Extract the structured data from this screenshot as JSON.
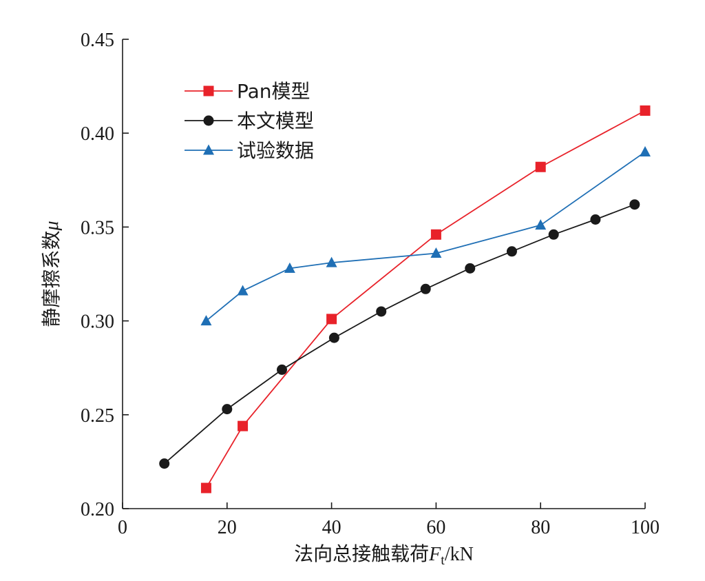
{
  "chart_data": {
    "type": "line",
    "xlabel": "法向总接触载荷Ft/kN",
    "xlabel_parts": {
      "prefix": "法向总接触载荷",
      "var": "F",
      "sub": "t",
      "suffix": "/kN"
    },
    "ylabel": "静摩擦系数μ",
    "ylabel_parts": {
      "prefix": "静摩擦系数",
      "var": "μ"
    },
    "xlim": [
      0,
      100
    ],
    "ylim": [
      0.2,
      0.45
    ],
    "xticks": [
      0,
      20,
      40,
      60,
      80,
      100
    ],
    "xtick_labels": [
      "0",
      "20",
      "40",
      "60",
      "80",
      "100"
    ],
    "yticks": [
      0.2,
      0.25,
      0.3,
      0.35,
      0.4,
      0.45
    ],
    "ytick_labels": [
      "0.20",
      "0.25",
      "0.30",
      "0.35",
      "0.40",
      "0.45"
    ],
    "grid": false,
    "legend_position": "top-left",
    "series": [
      {
        "name": "Pan模型",
        "color": "#e8222a",
        "marker": "square",
        "x": [
          16,
          23,
          40,
          60,
          80,
          100
        ],
        "y": [
          0.211,
          0.244,
          0.301,
          0.346,
          0.382,
          0.412
        ]
      },
      {
        "name": "本文模型",
        "color": "#1a1a1a",
        "marker": "circle",
        "x": [
          8,
          20,
          30.5,
          40.5,
          49.5,
          58,
          66.5,
          74.5,
          82.5,
          90.5,
          98
        ],
        "y": [
          0.224,
          0.253,
          0.274,
          0.291,
          0.305,
          0.317,
          0.328,
          0.337,
          0.346,
          0.354,
          0.362
        ]
      },
      {
        "name": "试验数据",
        "color": "#1f6fb5",
        "marker": "triangle",
        "x": [
          16,
          23,
          32,
          40,
          60,
          80,
          100
        ],
        "y": [
          0.3,
          0.316,
          0.328,
          0.331,
          0.336,
          0.351,
          0.39
        ]
      }
    ]
  }
}
